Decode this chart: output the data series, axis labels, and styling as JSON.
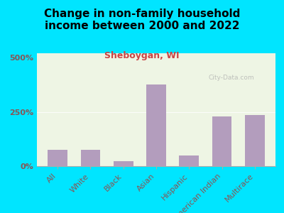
{
  "title": "Change in non-family household\nincome between 2000 and 2022",
  "subtitle": "Sheboygan, WI",
  "categories": [
    "All",
    "White",
    "Black",
    "Asian",
    "Hispanic",
    "American Indian",
    "Multirace"
  ],
  "values": [
    75,
    75,
    22,
    375,
    50,
    230,
    235
  ],
  "bar_color": "#b39dbd",
  "title_fontsize": 11,
  "subtitle_fontsize": 9,
  "subtitle_color": "#cc4444",
  "tick_label_color": "#885555",
  "axis_label_fontsize": 8,
  "background_outer": "#00e5ff",
  "plot_bg_top": "#f0f5e8",
  "plot_bg_bottom": "#e8f5e0",
  "yticks": [
    0,
    250,
    500
  ],
  "ytick_labels": [
    "0%",
    "250%",
    "500%"
  ],
  "ylim": [
    0,
    520
  ],
  "watermark": "City-Data.com"
}
